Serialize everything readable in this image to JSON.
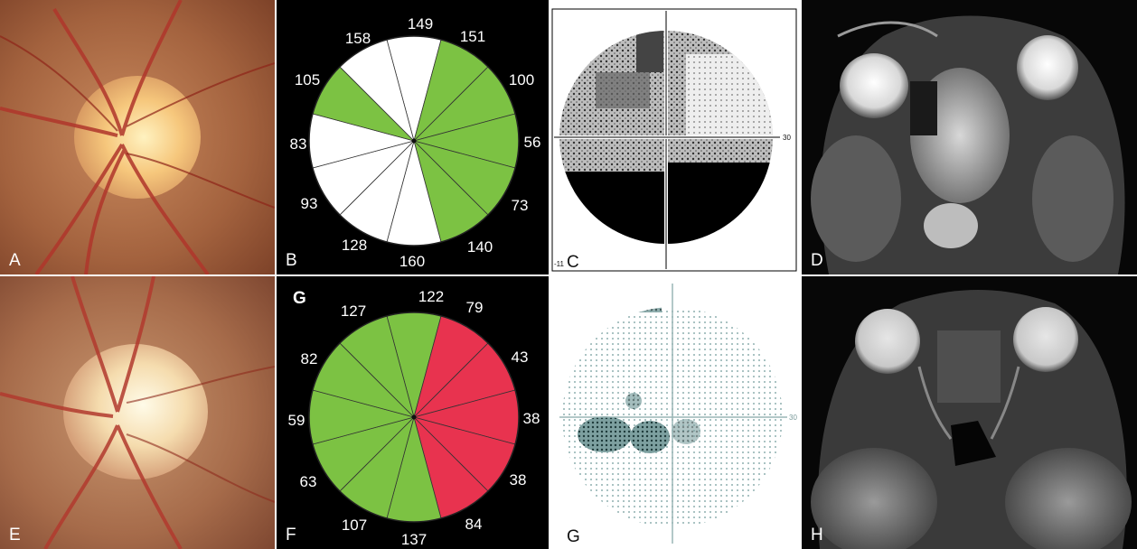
{
  "panels": {
    "A": {
      "label": "A"
    },
    "B": {
      "label": "B",
      "sectors": [
        "149",
        "151",
        "100",
        "56",
        "73",
        "140",
        "160",
        "128",
        "93",
        "83",
        "105",
        "158"
      ]
    },
    "C": {
      "label": "C",
      "corner_value": "-11",
      "axis_value": "30"
    },
    "D": {
      "label": "D"
    },
    "E": {
      "label": "E"
    },
    "F": {
      "label": "F",
      "top_label": "G",
      "sectors": [
        "122",
        "79",
        "43",
        "38",
        "38",
        "84",
        "137",
        "107",
        "63",
        "59",
        "82",
        "127"
      ]
    },
    "G": {
      "label": "G",
      "axis_value": "30"
    },
    "H": {
      "label": "H"
    }
  },
  "colors": {
    "green": "#7cc243",
    "red": "#e8334f",
    "white": "#ffffff",
    "black": "#000000"
  }
}
